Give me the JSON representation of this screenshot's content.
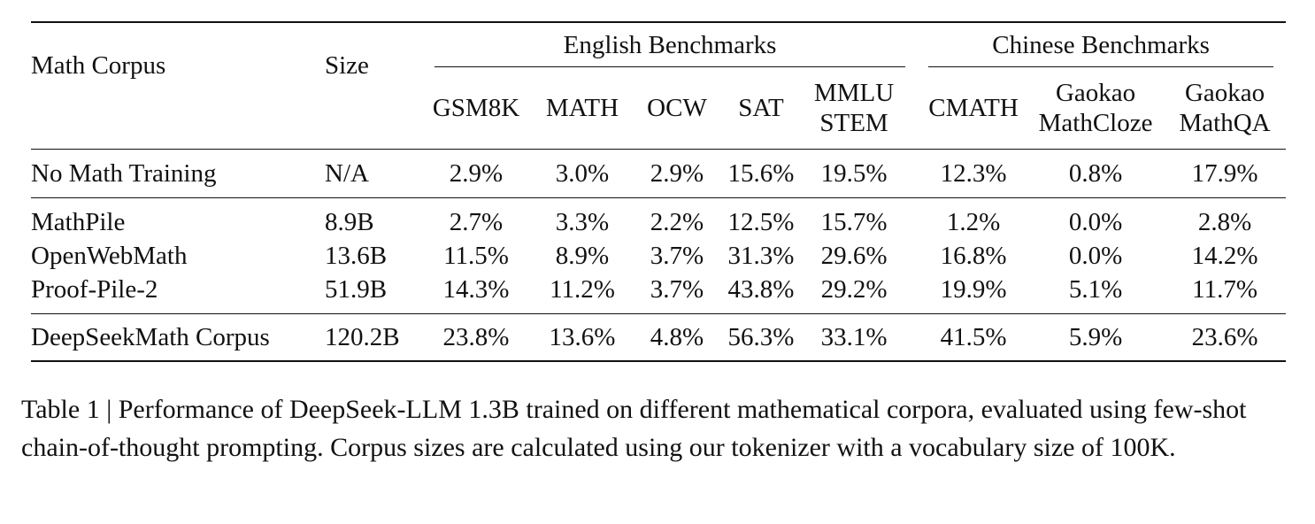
{
  "table": {
    "header": {
      "math_corpus": "Math Corpus",
      "size": "Size",
      "group_english": "English Benchmarks",
      "group_chinese": "Chinese Benchmarks",
      "cols": [
        {
          "line1": "GSM8K",
          "line2": ""
        },
        {
          "line1": "MATH",
          "line2": ""
        },
        {
          "line1": "OCW",
          "line2": ""
        },
        {
          "line1": "SAT",
          "line2": ""
        },
        {
          "line1": "MMLU",
          "line2": "STEM"
        },
        {
          "line1": "CMATH",
          "line2": ""
        },
        {
          "line1": "Gaokao",
          "line2": "MathCloze"
        },
        {
          "line1": "Gaokao",
          "line2": "MathQA"
        }
      ]
    },
    "rows": [
      {
        "name": "No Math Training",
        "size": "N/A",
        "values": [
          "2.9%",
          "3.0%",
          "2.9%",
          "15.6%",
          "19.5%",
          "12.3%",
          "0.8%",
          "17.9%"
        ],
        "bold": false
      },
      {
        "name": "MathPile",
        "size": "8.9B",
        "values": [
          "2.7%",
          "3.3%",
          "2.2%",
          "12.5%",
          "15.7%",
          "1.2%",
          "0.0%",
          "2.8%"
        ],
        "bold": false
      },
      {
        "name": "OpenWebMath",
        "size": "13.6B",
        "values": [
          "11.5%",
          "8.9%",
          "3.7%",
          "31.3%",
          "29.6%",
          "16.8%",
          "0.0%",
          "14.2%"
        ],
        "bold": false
      },
      {
        "name": "Proof-Pile-2",
        "size": "51.9B",
        "values": [
          "14.3%",
          "11.2%",
          "3.7%",
          "43.8%",
          "29.2%",
          "19.9%",
          "5.1%",
          "11.7%"
        ],
        "bold": false
      },
      {
        "name": "DeepSeekMath Corpus",
        "size": "120.2B",
        "values": [
          "23.8%",
          "13.6%",
          "4.8%",
          "56.3%",
          "33.1%",
          "41.5%",
          "5.9%",
          "23.6%"
        ],
        "bold": true
      }
    ]
  },
  "caption": "Table 1 | Performance of DeepSeek-LLM 1.3B trained on different mathematical corpora, evaluated using few-shot chain-of-thought prompting. Corpus sizes are calculated using our tokenizer with a vocabulary size of 100K."
}
